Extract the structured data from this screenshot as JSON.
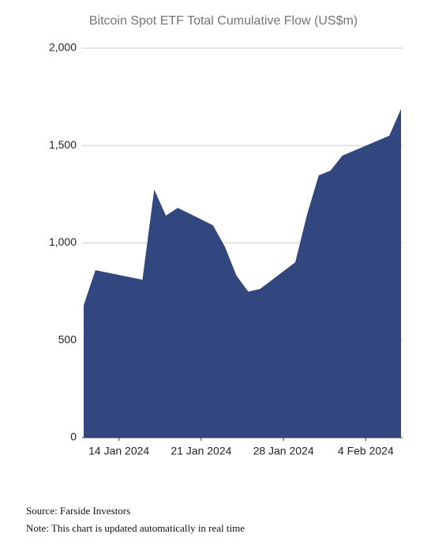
{
  "chart_data": {
    "type": "area",
    "title": "Bitcoin Spot ETF Total Cumulative Flow (US$m)",
    "x": [
      "2024-01-11",
      "2024-01-12",
      "2024-01-16",
      "2024-01-17",
      "2024-01-18",
      "2024-01-19",
      "2024-01-22",
      "2024-01-23",
      "2024-01-24",
      "2024-01-25",
      "2024-01-26",
      "2024-01-29",
      "2024-01-30",
      "2024-01-31",
      "2024-02-01",
      "2024-02-02",
      "2024-02-05",
      "2024-02-06",
      "2024-02-07"
    ],
    "values": [
      680,
      860,
      811,
      1274,
      1140,
      1180,
      1091,
      982,
      832,
      750,
      763,
      900,
      1144,
      1347,
      1371,
      1448,
      1525,
      1550,
      1688
    ],
    "color": "#32467f",
    "xlim": [
      "2024-01-11",
      "2024-02-07"
    ],
    "xticks": [
      {
        "value": "2024-01-14",
        "label": "14 Jan 2024"
      },
      {
        "value": "2024-01-21",
        "label": "21 Jan 2024"
      },
      {
        "value": "2024-01-28",
        "label": "28 Jan 2024"
      },
      {
        "value": "2024-02-04",
        "label": "4 Feb 2024"
      }
    ],
    "ylim": [
      0,
      2000
    ],
    "yticks": [
      0,
      500,
      {
        "value": 1000,
        "label": "1,000"
      },
      {
        "value": 1500,
        "label": "1,500"
      },
      {
        "value": 2000,
        "label": "2,000"
      }
    ],
    "grid": true
  },
  "footer": {
    "source": "Source: Farside Investors",
    "note": "Note: This chart is updated automatically in real time"
  }
}
